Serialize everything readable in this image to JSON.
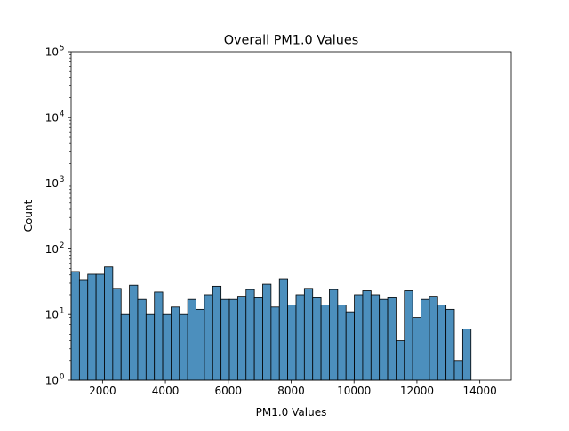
{
  "chart_data": {
    "type": "bar",
    "title": "Overall PM1.0 Values",
    "xlabel": "PM1.0 Values",
    "ylabel": "Count",
    "xlim": [
      1000,
      15000
    ],
    "ylim": [
      1,
      100000
    ],
    "yscale": "log",
    "x_ticks": [
      2000,
      4000,
      6000,
      8000,
      10000,
      12000,
      14000
    ],
    "y_ticks": [
      {
        "value": 1,
        "base": "10",
        "exp": "0"
      },
      {
        "value": 10,
        "base": "10",
        "exp": "1"
      },
      {
        "value": 100,
        "base": "10",
        "exp": "2"
      },
      {
        "value": 1000,
        "base": "10",
        "exp": "3"
      },
      {
        "value": 10000,
        "base": "10",
        "exp": "4"
      },
      {
        "value": 100000,
        "base": "10",
        "exp": "5"
      }
    ],
    "bin_start": 1000,
    "bin_width": 265,
    "values": [
      45,
      34,
      41,
      41,
      53,
      25,
      10,
      28,
      17,
      10,
      22,
      10,
      13,
      10,
      17,
      12,
      20,
      27,
      17,
      17,
      19,
      24,
      18,
      29,
      13,
      35,
      14,
      20,
      25,
      18,
      14,
      24,
      14,
      11,
      20,
      23,
      20,
      17,
      18,
      4,
      23,
      9,
      17,
      19,
      14,
      12,
      2,
      6
    ],
    "bar_color": "#4c8fbd",
    "edge_color": "#000000",
    "grid": false
  }
}
